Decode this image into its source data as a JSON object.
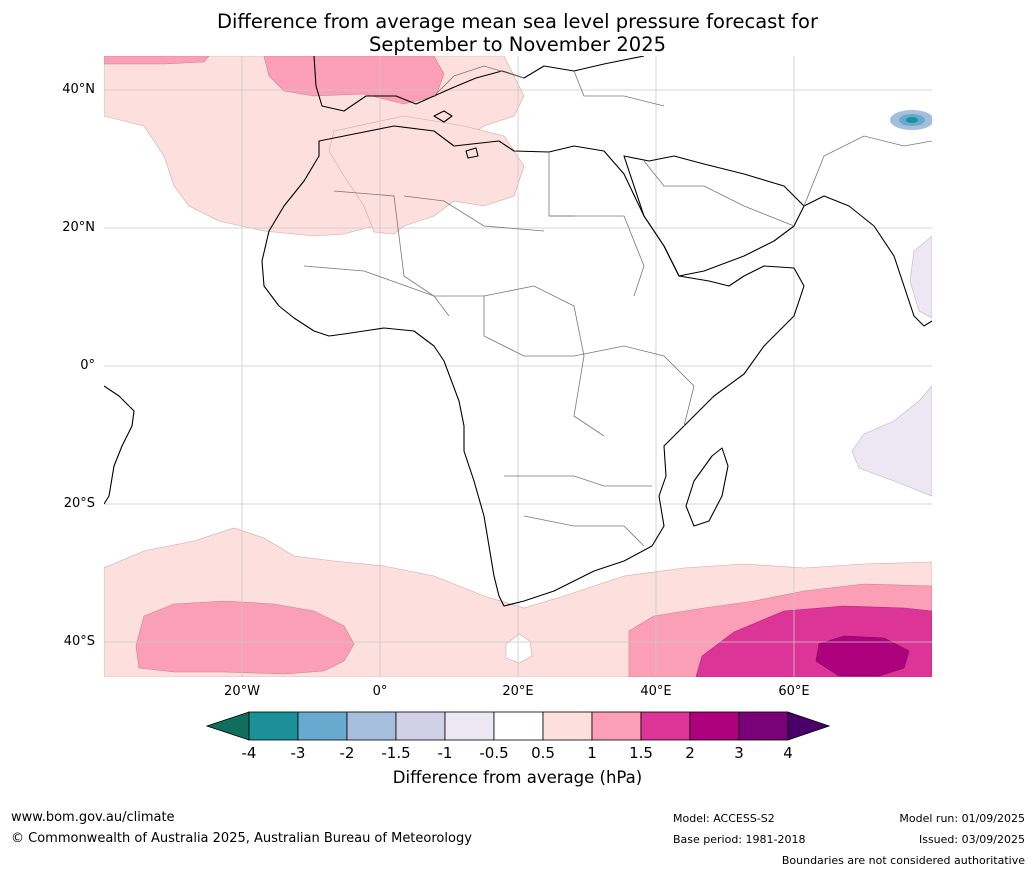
{
  "title": {
    "line1": "Difference from average mean sea level pressure forecast for",
    "line2": "September to November 2025"
  },
  "map": {
    "lat_labels": [
      "40°N",
      "20°N",
      "0°",
      "20°S",
      "40°S"
    ],
    "lon_labels": [
      "20°W",
      "0°",
      "20°E",
      "40°E",
      "60°E"
    ]
  },
  "colorbar": {
    "label": "Difference from average (hPa)",
    "ticks": [
      "-4",
      "-3",
      "-2",
      "-1.5",
      "-1",
      "-0.5",
      "0.5",
      "1",
      "1.5",
      "2",
      "3",
      "4"
    ],
    "colors": [
      "#0f6e5e",
      "#1c9099",
      "#67a9cf",
      "#a6bddb",
      "#d0d1e6",
      "#ece7f2",
      "#ffffff",
      "#fde0dd",
      "#fa9fb5",
      "#dd3497",
      "#ae017e",
      "#7a0177",
      "#49006a"
    ]
  },
  "footer": {
    "url": "www.bom.gov.au/climate",
    "copyright": "© Commonwealth of Australia 2025, Australian Bureau of Meteorology",
    "model": "Model: ACCESS-S2",
    "base_period": "Base period: 1981-2018",
    "model_run": "Model run: 01/09/2025",
    "issued": "Issued: 03/09/2025",
    "disclaimer": "Boundaries are not considered authoritative"
  }
}
